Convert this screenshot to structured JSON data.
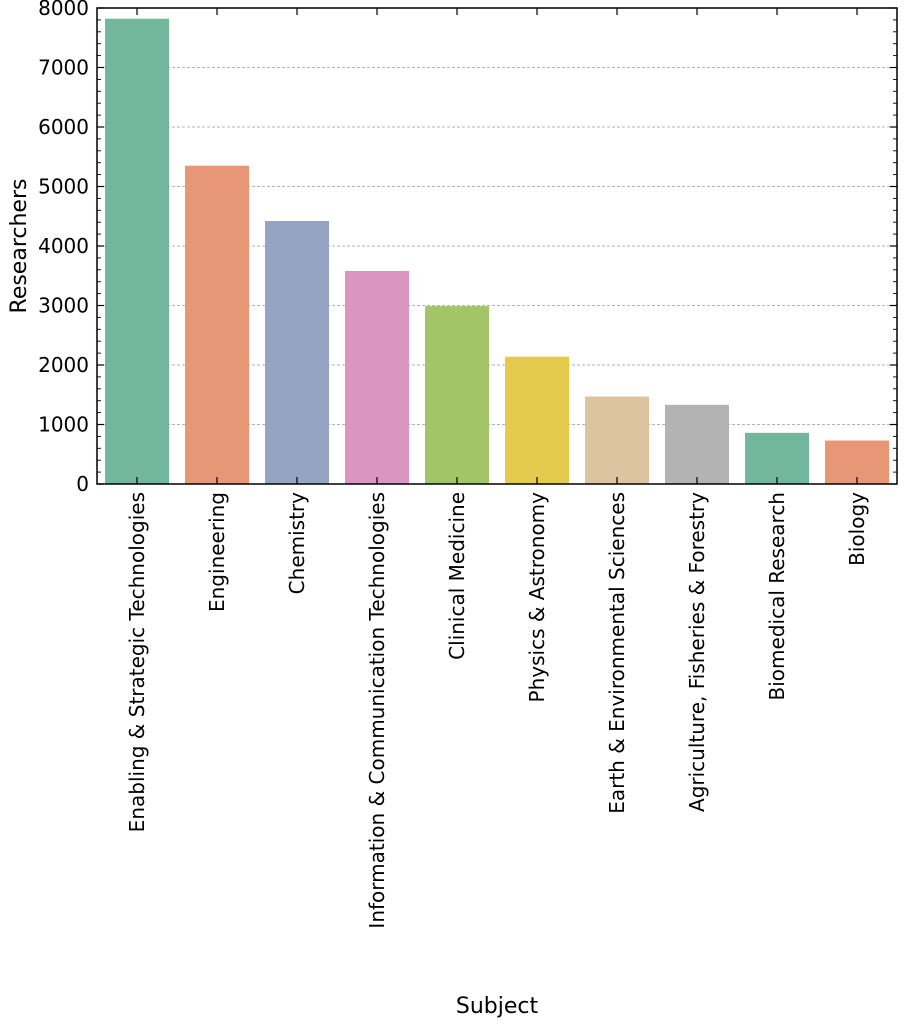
{
  "chart_data": {
    "type": "bar",
    "title": "",
    "xlabel": "Subject",
    "ylabel": "Researchers",
    "ylim": [
      0,
      8000
    ],
    "yticks": [
      0,
      1000,
      2000,
      3000,
      4000,
      5000,
      6000,
      7000,
      8000
    ],
    "grid": "horizontal dashed",
    "categories": [
      "Enabling & Strategic Technologies",
      "Engineering",
      "Chemistry",
      "Information & Communication Technologies",
      "Clinical Medicine",
      "Physics & Astronomy",
      "Earth & Environmental Sciences",
      "Agriculture, Fisheries & Forestry",
      "Biomedical Research",
      "Biology"
    ],
    "values": [
      7820,
      5350,
      4420,
      3580,
      2990,
      2140,
      1470,
      1330,
      860,
      730
    ],
    "colors": [
      "#72b69e",
      "#e89776",
      "#95a4c3",
      "#da95c1",
      "#a2c667",
      "#e4cb4d",
      "#dbc49f",
      "#b3b3b3",
      "#72b69e",
      "#e89776"
    ]
  }
}
